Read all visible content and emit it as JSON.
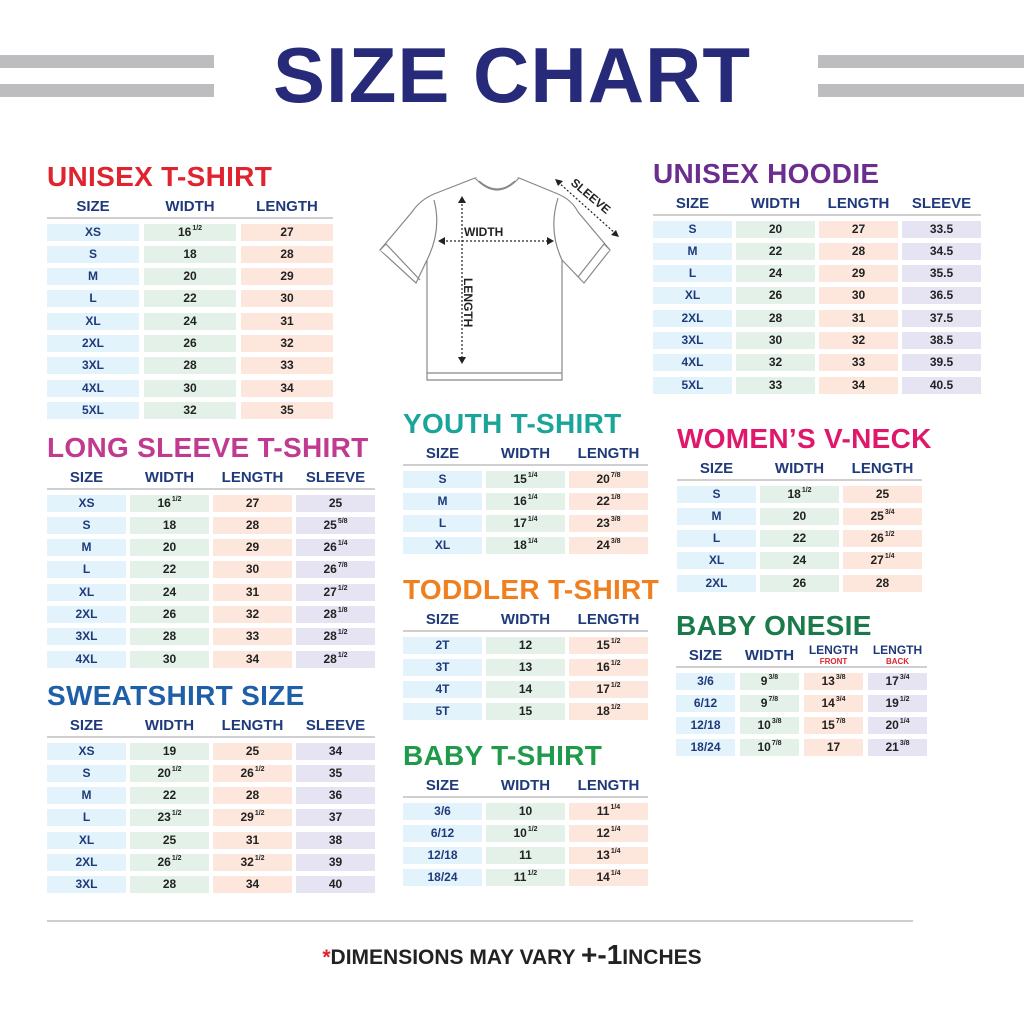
{
  "title": "SIZE CHART",
  "diagram": {
    "width_label": "WIDTH",
    "length_label": "LENGTH",
    "sleeve_label": "SLEEVE"
  },
  "footer": {
    "asterisk": "*",
    "text": "DIMENSIONS MAY VARY ",
    "tolerance": "+-1",
    "unit": "INCHES"
  },
  "colors": {
    "title": "#262a78",
    "header_text": "#1f3a7a",
    "size_cell": "#e3f3fc",
    "width_cell": "#e3f1e8",
    "length_cell": "#fde7dc",
    "sleeve_cell": "#e6e3f3"
  },
  "sections": [
    {
      "id": "unisex-t-shirt",
      "title": "UNISEX T-SHIRT",
      "color": "#e0242f",
      "columns": [
        {
          "label": "SIZE"
        },
        {
          "label": "WIDTH"
        },
        {
          "label": "LENGTH"
        }
      ],
      "rows": [
        [
          "XS",
          "16 1/2",
          "27"
        ],
        [
          "S",
          "18",
          "28"
        ],
        [
          "M",
          "20",
          "29"
        ],
        [
          "L",
          "22",
          "30"
        ],
        [
          "XL",
          "24",
          "31"
        ],
        [
          "2XL",
          "26",
          "32"
        ],
        [
          "3XL",
          "28",
          "33"
        ],
        [
          "4XL",
          "30",
          "34"
        ],
        [
          "5XL",
          "32",
          "35"
        ]
      ]
    },
    {
      "id": "long-sleeve-t-shirt",
      "title": "LONG SLEEVE T-SHIRT",
      "color": "#c03a8f",
      "columns": [
        {
          "label": "SIZE"
        },
        {
          "label": "WIDTH"
        },
        {
          "label": "LENGTH"
        },
        {
          "label": "SLEEVE"
        }
      ],
      "rows": [
        [
          "XS",
          "16 1/2",
          "27",
          "25"
        ],
        [
          "S",
          "18",
          "28",
          "25 5/8"
        ],
        [
          "M",
          "20",
          "29",
          "26 1/4"
        ],
        [
          "L",
          "22",
          "30",
          "26 7/8"
        ],
        [
          "XL",
          "24",
          "31",
          "27 1/2"
        ],
        [
          "2XL",
          "26",
          "32",
          "28 1/8"
        ],
        [
          "3XL",
          "28",
          "33",
          "28 1/2"
        ],
        [
          "4XL",
          "30",
          "34",
          "28 1/2"
        ]
      ]
    },
    {
      "id": "sweatshirt-size",
      "title": "SWEATSHIRT SIZE",
      "color": "#1f5fa8",
      "columns": [
        {
          "label": "SIZE"
        },
        {
          "label": "WIDTH"
        },
        {
          "label": "LENGTH"
        },
        {
          "label": "SLEEVE"
        }
      ],
      "rows": [
        [
          "XS",
          "19",
          "25",
          "34"
        ],
        [
          "S",
          "20 1/2",
          "26 1/2",
          "35"
        ],
        [
          "M",
          "22",
          "28",
          "36"
        ],
        [
          "L",
          "23 1/2",
          "29 1/2",
          "37"
        ],
        [
          "XL",
          "25",
          "31",
          "38"
        ],
        [
          "2XL",
          "26 1/2",
          "32 1/2",
          "39"
        ],
        [
          "3XL",
          "28",
          "34",
          "40"
        ]
      ]
    },
    {
      "id": "youth-t-shirt",
      "title": "YOUTH T-SHIRT",
      "color": "#1aa59a",
      "columns": [
        {
          "label": "SIZE"
        },
        {
          "label": "WIDTH"
        },
        {
          "label": "LENGTH"
        }
      ],
      "rows": [
        [
          "S",
          "15 1/4",
          "20 7/8"
        ],
        [
          "M",
          "16 1/4",
          "22 1/8"
        ],
        [
          "L",
          "17 1/4",
          "23 3/8"
        ],
        [
          "XL",
          "18 1/4",
          "24 3/8"
        ]
      ]
    },
    {
      "id": "toddler-t-shirt",
      "title": "TODDLER T-SHIRT",
      "color": "#f07f1f",
      "columns": [
        {
          "label": "SIZE"
        },
        {
          "label": "WIDTH"
        },
        {
          "label": "LENGTH"
        }
      ],
      "rows": [
        [
          "2T",
          "12",
          "15 1/2"
        ],
        [
          "3T",
          "13",
          "16 1/2"
        ],
        [
          "4T",
          "14",
          "17 1/2"
        ],
        [
          "5T",
          "15",
          "18 1/2"
        ]
      ]
    },
    {
      "id": "baby-t-shirt",
      "title": "BABY T-SHIRT",
      "color": "#1f9a4a",
      "columns": [
        {
          "label": "SIZE"
        },
        {
          "label": "WIDTH"
        },
        {
          "label": "LENGTH"
        }
      ],
      "rows": [
        [
          "3/6",
          "10",
          "11 1/4"
        ],
        [
          "6/12",
          "10 1/2",
          "12 1/4"
        ],
        [
          "12/18",
          "11",
          "13 1/4"
        ],
        [
          "18/24",
          "11 1/2",
          "14 1/4"
        ]
      ]
    },
    {
      "id": "unisex-hoodie",
      "title": "UNISEX HOODIE",
      "color": "#6b2e8f",
      "columns": [
        {
          "label": "SIZE"
        },
        {
          "label": "WIDTH"
        },
        {
          "label": "LENGTH"
        },
        {
          "label": "SLEEVE"
        }
      ],
      "rows": [
        [
          "S",
          "20",
          "27",
          "33.5"
        ],
        [
          "M",
          "22",
          "28",
          "34.5"
        ],
        [
          "L",
          "24",
          "29",
          "35.5"
        ],
        [
          "XL",
          "26",
          "30",
          "36.5"
        ],
        [
          "2XL",
          "28",
          "31",
          "37.5"
        ],
        [
          "3XL",
          "30",
          "32",
          "38.5"
        ],
        [
          "4XL",
          "32",
          "33",
          "39.5"
        ],
        [
          "5XL",
          "33",
          "34",
          "40.5"
        ]
      ]
    },
    {
      "id": "womens-v-neck",
      "title": "WOMEN’S V-NECK",
      "color": "#e0186b",
      "columns": [
        {
          "label": "SIZE"
        },
        {
          "label": "WIDTH"
        },
        {
          "label": "LENGTH"
        }
      ],
      "rows": [
        [
          "S",
          "18 1/2",
          "25"
        ],
        [
          "M",
          "20",
          "25 3/4"
        ],
        [
          "L",
          "22",
          "26 1/2"
        ],
        [
          "XL",
          "24",
          "27 1/4"
        ],
        [
          "2XL",
          "26",
          "28"
        ]
      ]
    },
    {
      "id": "baby-onesie",
      "title": "BABY ONESIE",
      "color": "#1a7a4a",
      "columns": [
        {
          "label": "SIZE"
        },
        {
          "label": "WIDTH"
        },
        {
          "label": "LENGTH",
          "sublabel": "FRONT"
        },
        {
          "label": "LENGTH",
          "sublabel": "BACK"
        }
      ],
      "rows": [
        [
          "3/6",
          "9 3/8",
          "13 3/8",
          "17 3/4"
        ],
        [
          "6/12",
          "9 7/8",
          "14 3/4",
          "19 1/2"
        ],
        [
          "12/18",
          "10 3/8",
          "15 7/8",
          "20 1/4"
        ],
        [
          "18/24",
          "10 7/8",
          "17",
          "21 3/8"
        ]
      ]
    }
  ]
}
